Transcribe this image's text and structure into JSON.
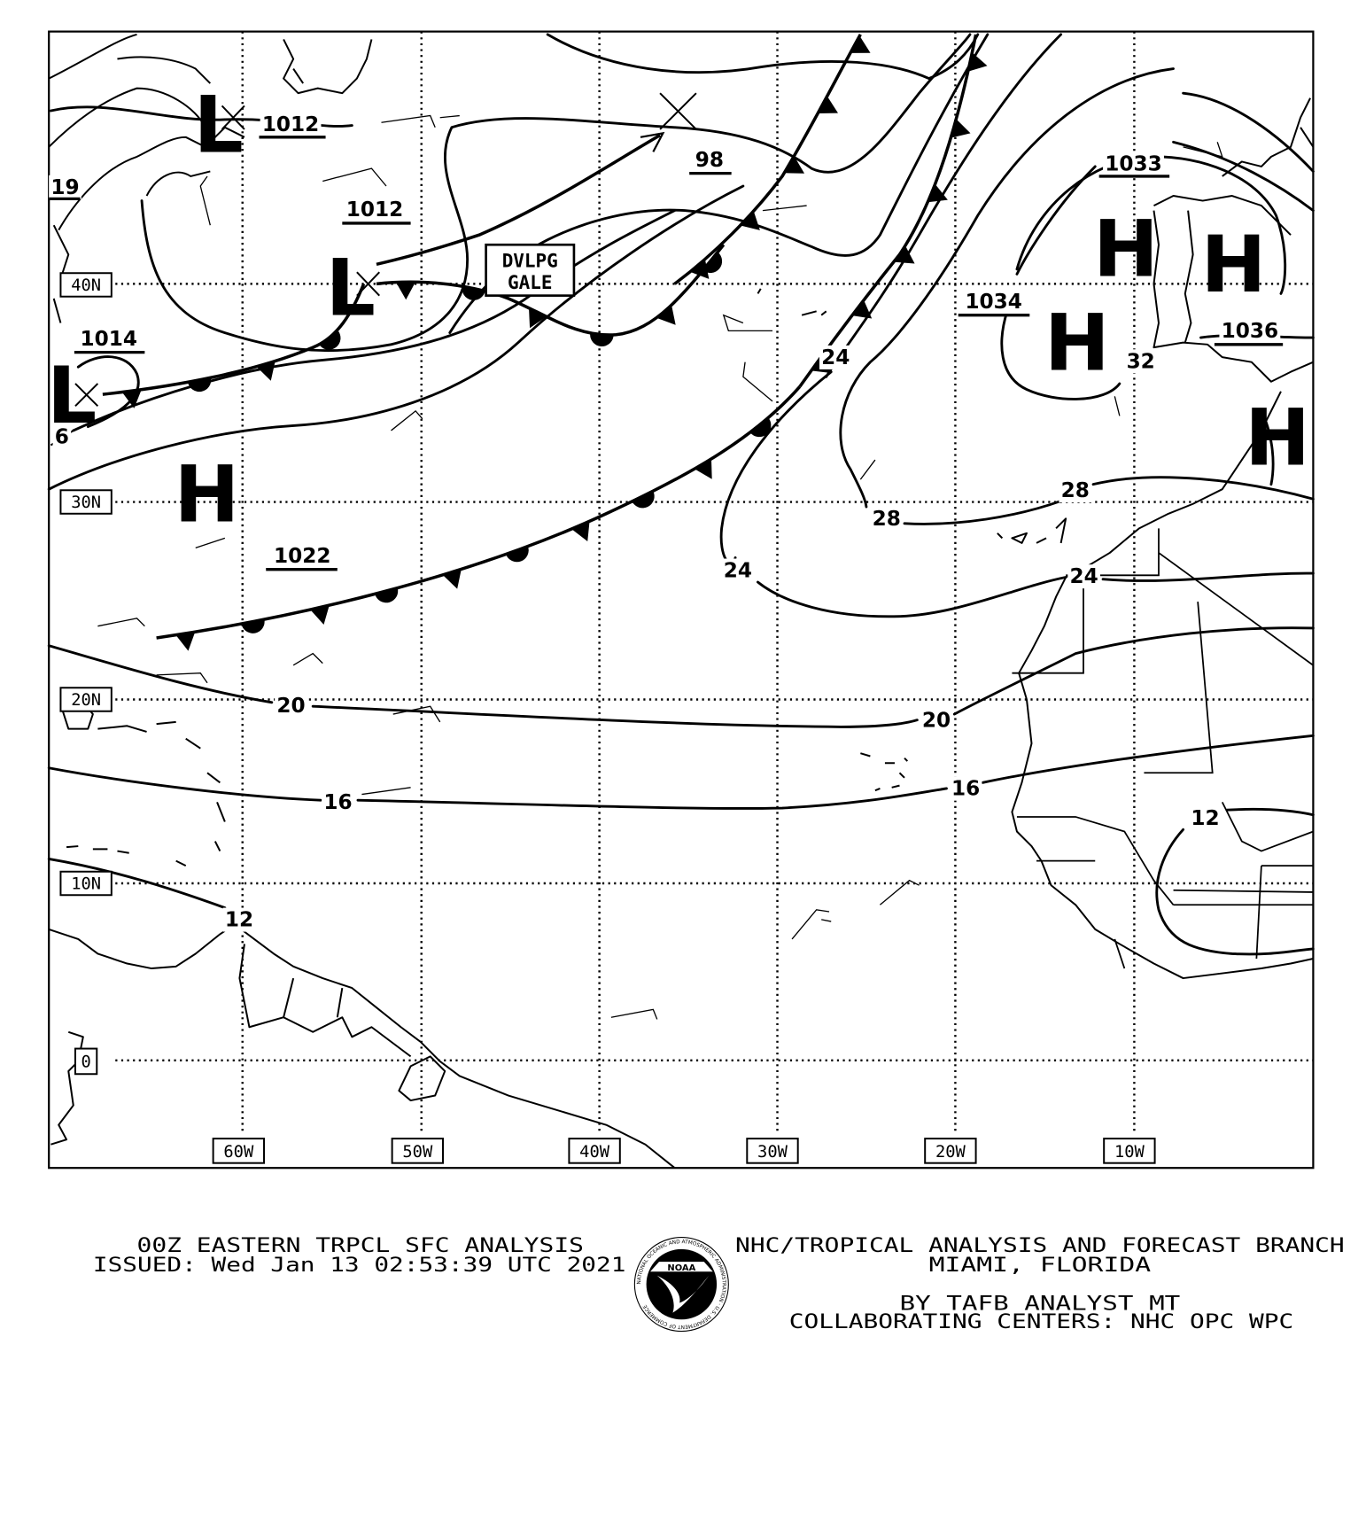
{
  "footer": {
    "title": "00Z EASTERN TRPCL SFC ANALYSIS",
    "issued": "ISSUED: Wed Jan 13 02:53:39 UTC 2021",
    "office": "NHC/TROPICAL ANALYSIS AND FORECAST BRANCH",
    "location": "MIAMI,  FLORIDA",
    "analyst": "BY TAFB ANALYST  MT",
    "collaborators": "COLLABORATING CENTERS: NHC OPC WPC",
    "logo_text": "NOAA",
    "logo_ring": "NATIONAL OCEANIC AND ATMOSPHERIC ADMINISTRATION · U.S. DEPARTMENT OF COMMERCE"
  },
  "grid": {
    "longitudes": [
      "60W",
      "50W",
      "40W",
      "30W",
      "20W",
      "10W"
    ],
    "latitudes": [
      "40N",
      "30N",
      "20N",
      "10N",
      "0"
    ]
  },
  "pressure_systems": [
    {
      "type": "L",
      "value": "1012"
    },
    {
      "type": "L",
      "value": "1012"
    },
    {
      "type": "L",
      "value": "1014"
    },
    {
      "type": "H",
      "value": "1022"
    },
    {
      "type": "L",
      "value": "98"
    },
    {
      "type": "H",
      "value": "1033"
    },
    {
      "type": "H",
      "value": "1034"
    },
    {
      "type": "H",
      "value": "1036"
    },
    {
      "type": "H",
      "value": ""
    },
    {
      "type": "L",
      "value": "19"
    }
  ],
  "isobar_labels": [
    "24",
    "32",
    "28",
    "28",
    "24",
    "24",
    "20",
    "20",
    "16",
    "16",
    "12",
    "12",
    "6"
  ],
  "annotations": {
    "gale_line1": "DVLPG",
    "gale_line2": "GALE"
  },
  "fronts": [
    {
      "type": "stationary"
    },
    {
      "type": "stationary"
    },
    {
      "type": "stationary"
    },
    {
      "type": "cold"
    },
    {
      "type": "cold"
    }
  ],
  "colors": {
    "ink": "#000000",
    "background": "#ffffff"
  }
}
